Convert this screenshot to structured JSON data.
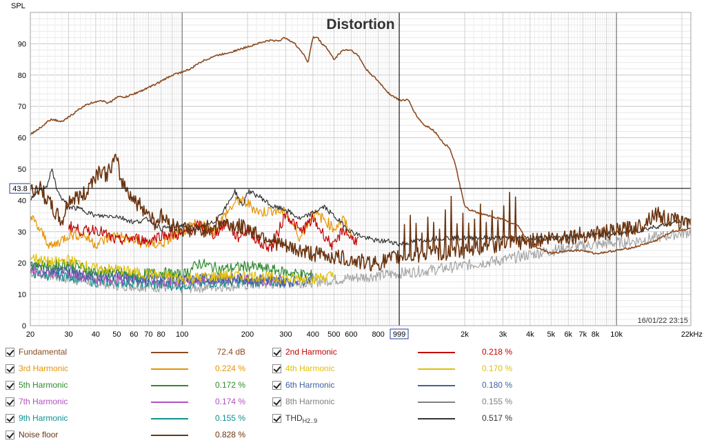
{
  "chart_data": {
    "type": "line",
    "title": "Distortion",
    "ylabel": "SPL",
    "xscale": "log",
    "xlim": [
      20,
      22000
    ],
    "ylim": [
      0,
      100
    ],
    "yticks": [
      0,
      10,
      20,
      30,
      40,
      50,
      60,
      70,
      80,
      90
    ],
    "xticks": [
      {
        "v": 20,
        "label": "20"
      },
      {
        "v": 30,
        "label": "30"
      },
      {
        "v": 40,
        "label": "40"
      },
      {
        "v": 50,
        "label": "50"
      },
      {
        "v": 60,
        "label": "60"
      },
      {
        "v": 70,
        "label": "70"
      },
      {
        "v": 80,
        "label": "80"
      },
      {
        "v": 100,
        "label": "100"
      },
      {
        "v": 200,
        "label": "200"
      },
      {
        "v": 300,
        "label": "300"
      },
      {
        "v": 400,
        "label": "400"
      },
      {
        "v": 500,
        "label": "500"
      },
      {
        "v": 600,
        "label": "600"
      },
      {
        "v": 800,
        "label": "800"
      },
      {
        "v": 2000,
        "label": "2k"
      },
      {
        "v": 3000,
        "label": "3k"
      },
      {
        "v": 4000,
        "label": "4k"
      },
      {
        "v": 5000,
        "label": "5k"
      },
      {
        "v": 6000,
        "label": "6k"
      },
      {
        "v": 7000,
        "label": "7k"
      },
      {
        "v": 8000,
        "label": "8k"
      },
      {
        "v": 10000,
        "label": "10k"
      },
      {
        "v": 22000,
        "label": "22kHz"
      }
    ],
    "cursor": {
      "x": 999,
      "x_label": "999",
      "y": 43.8,
      "y_label": "43.8"
    },
    "timestamp": "16/01/22 23:15",
    "grid": true,
    "series": [
      {
        "name": "Fundamental",
        "color": "#8B4A1F",
        "value": "72.4 dB",
        "x": [
          20,
          22,
          25,
          28,
          32,
          35,
          38,
          42,
          46,
          50,
          55,
          60,
          65,
          70,
          75,
          80,
          90,
          100,
          110,
          120,
          140,
          160,
          180,
          200,
          220,
          250,
          280,
          300,
          330,
          360,
          380,
          400,
          420,
          440,
          460,
          500,
          550,
          600,
          650,
          700,
          800,
          900,
          1000,
          1100,
          1200,
          1300,
          1400,
          1500,
          1600,
          1700,
          1800,
          1900,
          2000,
          2100,
          2300,
          2600,
          3000,
          3500,
          4000,
          5000,
          6000,
          7000,
          8000,
          10000,
          12000,
          15000,
          18000,
          22000
        ],
        "y": [
          61,
          63,
          66,
          65,
          68,
          70,
          71,
          72,
          71,
          73,
          73,
          74,
          75,
          76,
          77,
          78,
          80,
          81,
          82,
          84,
          86,
          87,
          88,
          89,
          90,
          91,
          91,
          92,
          90,
          87,
          84,
          92,
          92,
          90,
          89,
          85,
          88,
          88,
          86,
          82,
          78,
          74,
          72,
          72,
          67,
          64,
          63,
          61,
          58,
          57,
          52,
          45,
          38,
          37,
          36,
          35,
          34,
          32,
          26,
          23,
          24,
          24,
          23,
          24,
          25,
          27,
          30,
          31
        ]
      },
      {
        "name": "2nd Harmonic",
        "color": "#C00000",
        "value": "0.218 %",
        "x": [
          30,
          35,
          40,
          50,
          60,
          70,
          80,
          100,
          120,
          140,
          160,
          180,
          200,
          230,
          260,
          300,
          350,
          400,
          450,
          500,
          550,
          600,
          650
        ],
        "y": [
          32,
          30,
          31,
          27,
          28,
          27,
          29,
          29,
          32,
          29,
          33,
          28,
          31,
          26,
          25,
          36,
          30,
          34,
          29,
          25,
          31,
          28,
          27
        ]
      },
      {
        "name": "3rd Harmonic",
        "color": "#E59400",
        "value": "0.224 %",
        "x": [
          20,
          25,
          30,
          35,
          40,
          50,
          60,
          70,
          80,
          100,
          120,
          140,
          160,
          180,
          200,
          230,
          260,
          300,
          350,
          400,
          450,
          500,
          550,
          600
        ],
        "y": [
          35,
          25,
          29,
          29,
          26,
          29,
          27,
          26,
          26,
          30,
          33,
          30,
          36,
          40,
          39,
          36,
          37,
          36,
          28,
          36,
          34,
          31,
          34,
          29
        ]
      },
      {
        "name": "4th Harmonic",
        "color": "#E0C000",
        "value": "0.170 %",
        "x": [
          20,
          25,
          30,
          40,
          50,
          60,
          80,
          100,
          150,
          200,
          300,
          400,
          500
        ],
        "y": [
          22,
          20,
          21,
          18,
          18,
          17,
          16,
          15,
          16,
          16,
          15,
          15,
          16
        ]
      },
      {
        "name": "5th Harmonic",
        "color": "#2E8B2E",
        "value": "0.172 %",
        "x": [
          20,
          25,
          30,
          40,
          50,
          60,
          80,
          100,
          120,
          150,
          200,
          250,
          300,
          400
        ],
        "y": [
          20,
          19,
          20,
          17,
          17,
          16,
          17,
          16,
          20,
          18,
          19,
          18,
          17,
          16
        ]
      },
      {
        "name": "6th Harmonic",
        "color": "#4060A0",
        "value": "0.180 %",
        "x": [
          20,
          25,
          30,
          40,
          50,
          60,
          80,
          100,
          150,
          200,
          300,
          400
        ],
        "y": [
          19,
          18,
          18,
          16,
          16,
          15,
          15,
          15,
          15,
          15,
          14,
          15
        ]
      },
      {
        "name": "7th Harmonic",
        "color": "#B050C0",
        "value": "0.174 %",
        "x": [
          20,
          25,
          30,
          40,
          50,
          60,
          80,
          100,
          150,
          200,
          300
        ],
        "y": [
          18,
          17,
          17,
          15,
          15,
          15,
          14,
          14,
          15,
          15,
          14
        ]
      },
      {
        "name": "8th Harmonic",
        "color": "#808080",
        "value": "0.155 %",
        "x": [
          20,
          30,
          50,
          100,
          200,
          400,
          800,
          1500,
          3000,
          6000,
          12000,
          22000
        ],
        "y": [
          17,
          15,
          13,
          12,
          13,
          14,
          16,
          18,
          21,
          25,
          27,
          30
        ]
      },
      {
        "name": "9th Harmonic",
        "color": "#109090",
        "value": "0.155 %",
        "x": [
          20,
          25,
          30,
          40,
          50,
          60,
          80,
          100,
          150,
          200,
          300
        ],
        "y": [
          17,
          16,
          16,
          14,
          14,
          14,
          13,
          13,
          14,
          14,
          14
        ]
      },
      {
        "name": "THD",
        "sub": "H2..9",
        "color": "#333333",
        "value": "0.517 %",
        "x": [
          20,
          22,
          24,
          25,
          27,
          30,
          35,
          40,
          50,
          60,
          70,
          80,
          100,
          120,
          140,
          160,
          175,
          190,
          200,
          230,
          260,
          300,
          350,
          400,
          450,
          500,
          600,
          700,
          800,
          900,
          1000,
          1200,
          1500,
          2000,
          3000,
          5000,
          8000,
          12000,
          16000,
          22000
        ],
        "y": [
          40,
          43,
          45,
          50,
          42,
          38,
          37,
          35,
          35,
          33,
          34,
          31,
          32,
          31,
          33,
          38,
          43,
          38,
          43,
          41,
          38,
          37,
          34,
          36,
          38,
          35,
          30,
          28,
          27,
          27,
          26,
          27,
          28,
          28,
          28,
          28,
          29,
          30,
          32,
          34
        ]
      },
      {
        "name": "Noise floor",
        "color": "#6B3410",
        "value": "0.828 %",
        "x": [
          20,
          22,
          24,
          26,
          28,
          30,
          33,
          36,
          38,
          42,
          45,
          48,
          50,
          52,
          55,
          58,
          60,
          65,
          70,
          75,
          80,
          90,
          100,
          120,
          150,
          200,
          250,
          300,
          400,
          500,
          600,
          700,
          800,
          1000,
          1500,
          2000,
          3000,
          4000,
          5000,
          7000,
          10000,
          13000,
          15000,
          17000,
          20000,
          22000
        ],
        "y": [
          43,
          44,
          40,
          36,
          33,
          40,
          41,
          42,
          46,
          50,
          48,
          52,
          53,
          47,
          44,
          42,
          40,
          38,
          36,
          33,
          35,
          32,
          31,
          30,
          33,
          31,
          28,
          25,
          23,
          22,
          21,
          20,
          20,
          22,
          23,
          24,
          26,
          27,
          28,
          29,
          30,
          32,
          36,
          34,
          33,
          34
        ]
      }
    ]
  }
}
